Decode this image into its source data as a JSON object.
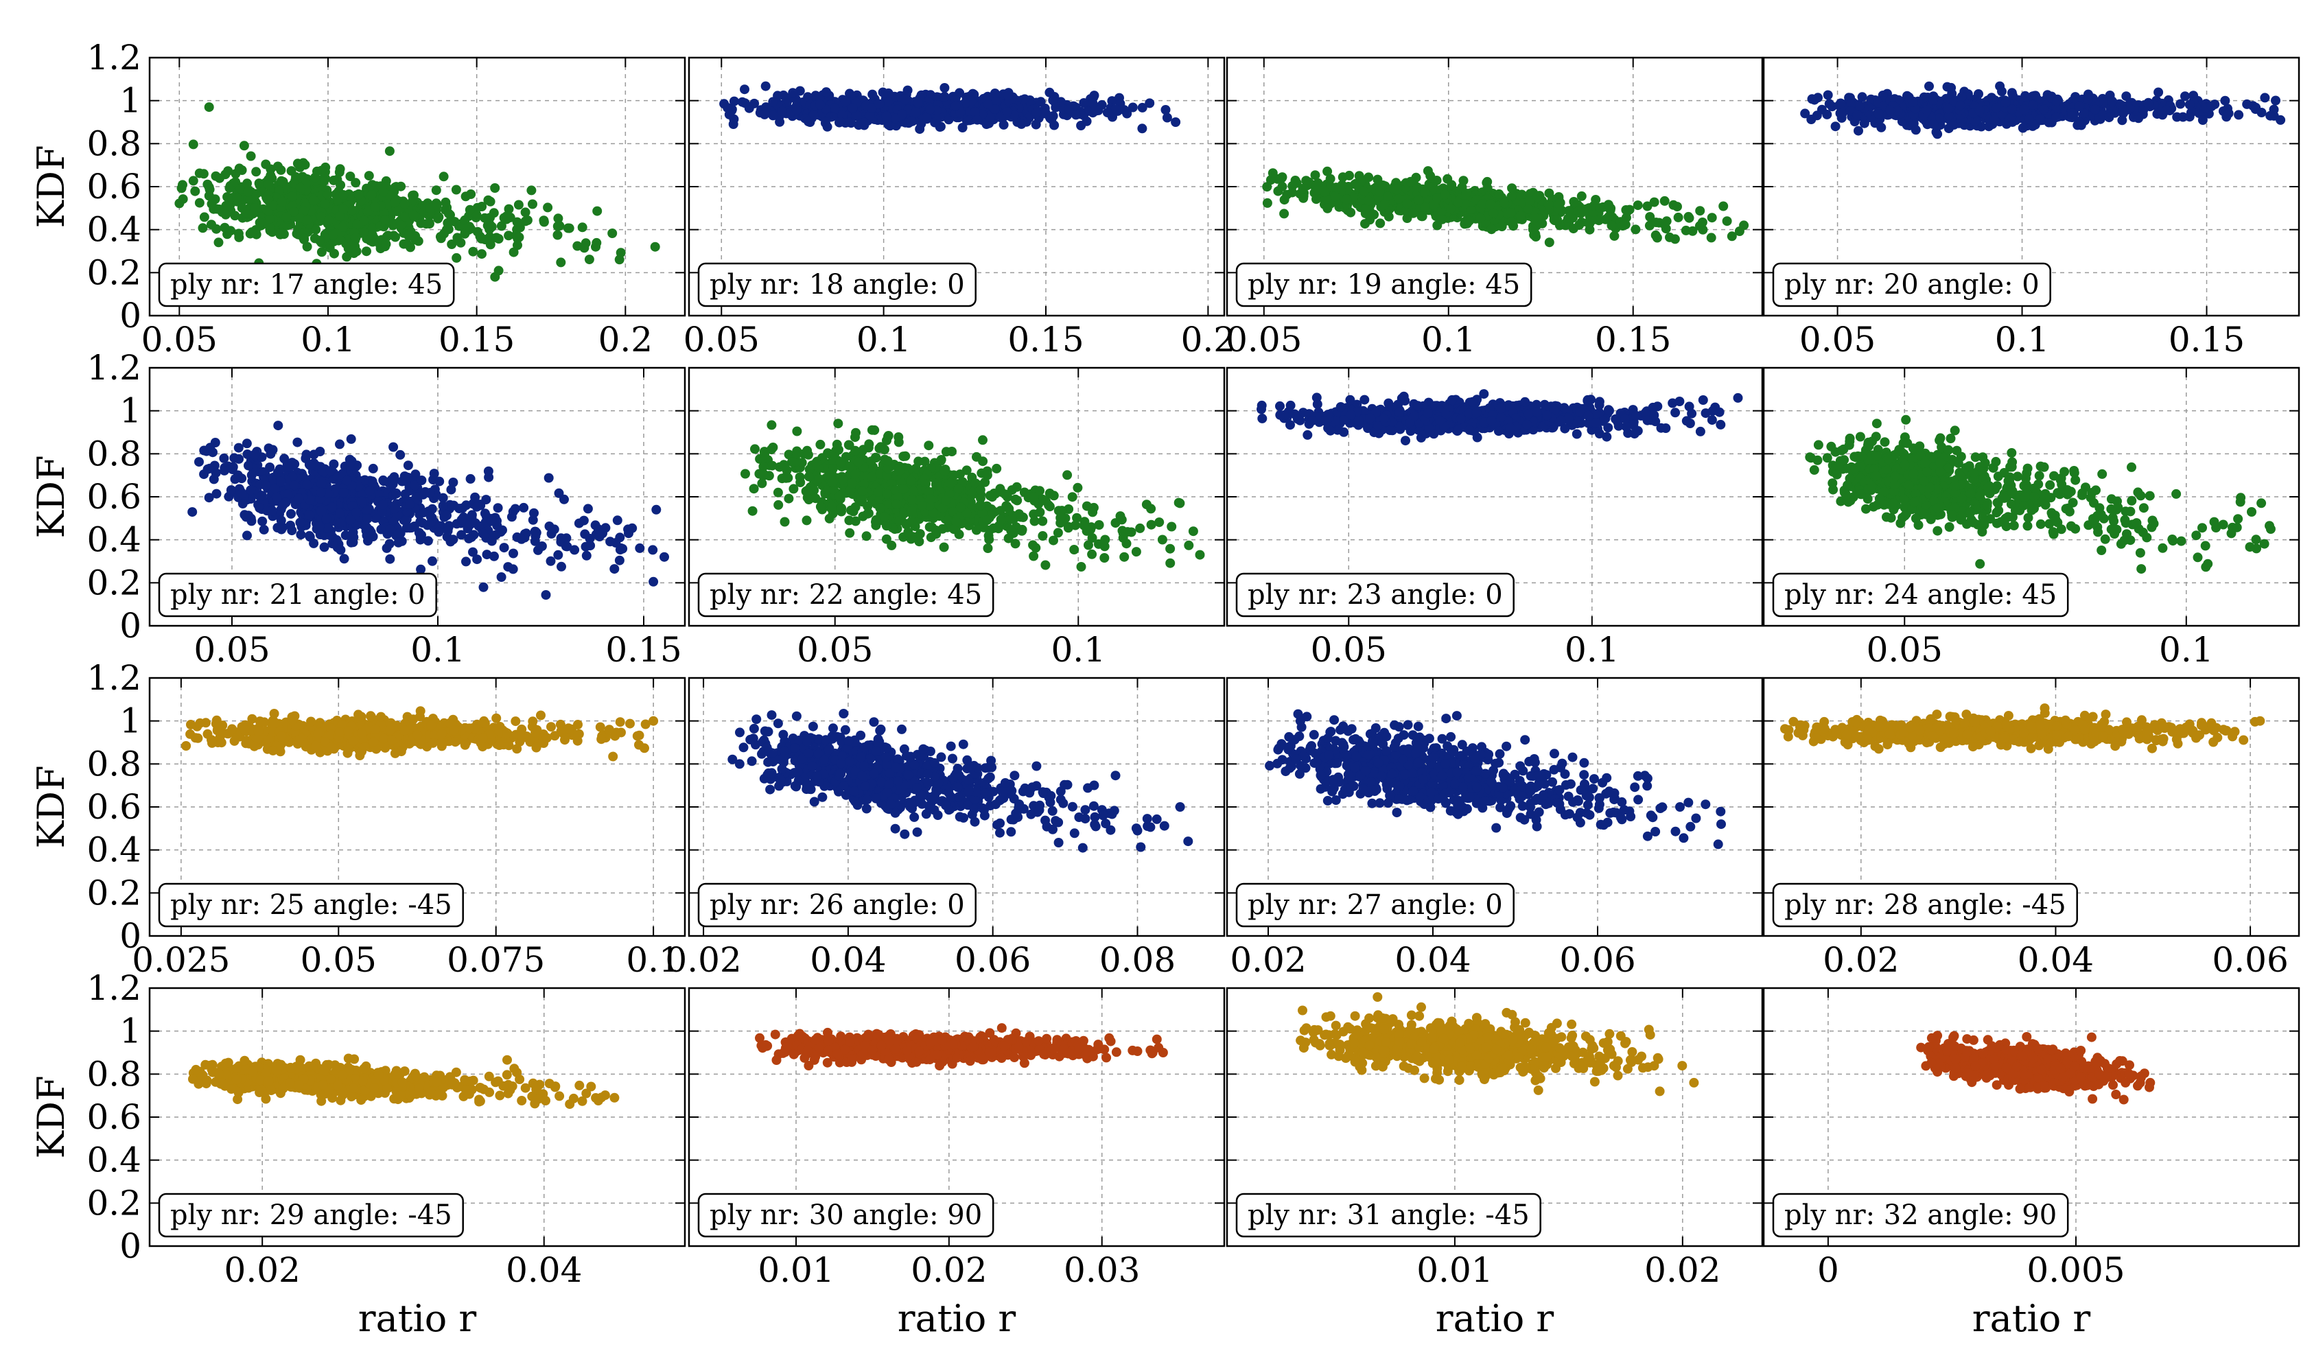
{
  "figure": {
    "ylabel": "KDF",
    "xlabel": "ratio r"
  },
  "colors": {
    "green": "#1b7a1e",
    "blue": "#0d2480",
    "gold": "#b8860b",
    "orange": "#b5400f"
  },
  "chart_data": [
    {
      "type": "scatter",
      "annotation": "ply nr: 17 angle: 45",
      "color": "green",
      "xlim": [
        0.04,
        0.22
      ],
      "xticks": [
        0.05,
        0.1,
        0.15,
        0.2
      ],
      "xticklabels": [
        "0.05",
        "0.1",
        "0.15",
        "0.2"
      ],
      "ylim": [
        0,
        1.2
      ],
      "cluster": {
        "x_range": [
          0.05,
          0.2
        ],
        "x_center": 0.09,
        "y_center": 0.5,
        "y_spread": 0.15,
        "trend": -1.2
      },
      "outliers": [
        [
          0.19,
          0.32
        ],
        [
          0.21,
          0.32
        ],
        [
          0.06,
          0.97
        ]
      ]
    },
    {
      "type": "scatter",
      "annotation": "ply nr: 18 angle: 0",
      "color": "blue",
      "xlim": [
        0.04,
        0.205
      ],
      "xticks": [
        0.05,
        0.1,
        0.15,
        0.2
      ],
      "xticklabels": [
        "0.05",
        "0.1",
        "0.15",
        "0.2"
      ],
      "ylim": [
        0,
        1.2
      ],
      "cluster": {
        "x_range": [
          0.05,
          0.19
        ],
        "x_center": 0.1,
        "y_center": 0.96,
        "y_spread": 0.06,
        "trend": 0
      },
      "outliers": [
        [
          0.19,
          0.9
        ],
        [
          0.175,
          0.94
        ]
      ]
    },
    {
      "type": "scatter",
      "annotation": "ply nr: 19 angle: 45",
      "color": "green",
      "xlim": [
        0.04,
        0.185
      ],
      "xticks": [
        0.05,
        0.1,
        0.15
      ],
      "xticklabels": [
        "0.05",
        "0.1",
        "0.15"
      ],
      "ylim": [
        0,
        1.2
      ],
      "cluster": {
        "x_range": [
          0.05,
          0.18
        ],
        "x_center": 0.09,
        "y_center": 0.54,
        "y_spread": 0.08,
        "trend": -1.5
      },
      "outliers": [
        [
          0.18,
          0.42
        ],
        [
          0.165,
          0.46
        ]
      ]
    },
    {
      "type": "scatter",
      "annotation": "ply nr: 20 angle: 0",
      "color": "blue",
      "xlim": [
        0.03,
        0.175
      ],
      "xticks": [
        0.05,
        0.1,
        0.15
      ],
      "xticklabels": [
        "0.05",
        "0.1",
        "0.15"
      ],
      "ylim": [
        0,
        1.2
      ],
      "cluster": {
        "x_range": [
          0.04,
          0.17
        ],
        "x_center": 0.08,
        "y_center": 0.96,
        "y_spread": 0.06,
        "trend": 0
      },
      "outliers": [
        [
          0.17,
          0.91
        ],
        [
          0.155,
          1.0
        ]
      ]
    },
    {
      "type": "scatter",
      "annotation": "ply nr: 21 angle: 0",
      "color": "blue",
      "xlim": [
        0.03,
        0.16
      ],
      "xticks": [
        0.05,
        0.1,
        0.15
      ],
      "xticklabels": [
        "0.05",
        "0.1",
        "0.15"
      ],
      "ylim": [
        0,
        1.2
      ],
      "cluster": {
        "x_range": [
          0.04,
          0.155
        ],
        "x_center": 0.07,
        "y_center": 0.6,
        "y_spread": 0.17,
        "trend": -3
      },
      "outliers": [
        [
          0.155,
          0.32
        ],
        [
          0.14,
          0.43
        ]
      ]
    },
    {
      "type": "scatter",
      "annotation": "ply nr: 22 angle: 45",
      "color": "green",
      "xlim": [
        0.02,
        0.13
      ],
      "xticks": [
        0.05,
        0.1
      ],
      "xticklabels": [
        "0.05",
        "0.1"
      ],
      "ylim": [
        0,
        1.2
      ],
      "cluster": {
        "x_range": [
          0.03,
          0.125
        ],
        "x_center": 0.058,
        "y_center": 0.65,
        "y_spread": 0.16,
        "trend": -4
      },
      "outliers": [
        [
          0.125,
          0.33
        ],
        [
          0.115,
          0.47
        ]
      ]
    },
    {
      "type": "scatter",
      "annotation": "ply nr: 23 angle: 0",
      "color": "blue",
      "xlim": [
        0.025,
        0.135
      ],
      "xticks": [
        0.05,
        0.1
      ],
      "xticklabels": [
        "0.05",
        "0.1"
      ],
      "ylim": [
        0,
        1.2
      ],
      "cluster": {
        "x_range": [
          0.032,
          0.13
        ],
        "x_center": 0.065,
        "y_center": 0.97,
        "y_spread": 0.06,
        "trend": 0
      },
      "outliers": [
        [
          0.13,
          1.06
        ],
        [
          0.12,
          1.02
        ]
      ]
    },
    {
      "type": "scatter",
      "annotation": "ply nr: 24 angle: 45",
      "color": "green",
      "xlim": [
        0.025,
        0.12
      ],
      "xticks": [
        0.05,
        0.1
      ],
      "xticklabels": [
        "0.05",
        "0.1"
      ],
      "ylim": [
        0,
        1.2
      ],
      "cluster": {
        "x_range": [
          0.033,
          0.115
        ],
        "x_center": 0.05,
        "y_center": 0.68,
        "y_spread": 0.15,
        "trend": -4
      },
      "outliers": [
        [
          0.115,
          0.45
        ],
        [
          0.108,
          0.43
        ]
      ]
    },
    {
      "type": "scatter",
      "annotation": "ply nr: 25 angle: -45",
      "color": "gold",
      "xlim": [
        0.02,
        0.105
      ],
      "xticks": [
        0.025,
        0.05,
        0.075,
        0.1
      ],
      "xticklabels": [
        "0.025",
        "0.05",
        "0.075",
        "0.1"
      ],
      "ylim": [
        0,
        1.2
      ],
      "cluster": {
        "x_range": [
          0.025,
          0.1
        ],
        "x_center": 0.05,
        "y_center": 0.94,
        "y_spread": 0.06,
        "trend": 0
      },
      "outliers": [
        [
          0.1,
          1.0
        ],
        [
          0.093,
          0.96
        ]
      ]
    },
    {
      "type": "scatter",
      "annotation": "ply nr: 26 angle: 0",
      "color": "blue",
      "xlim": [
        0.018,
        0.092
      ],
      "xticks": [
        0.02,
        0.04,
        0.06,
        0.08
      ],
      "xticklabels": [
        "0.02",
        "0.04",
        "0.06",
        "0.08"
      ],
      "ylim": [
        0,
        1.2
      ],
      "cluster": {
        "x_range": [
          0.024,
          0.088
        ],
        "x_center": 0.04,
        "y_center": 0.78,
        "y_spread": 0.14,
        "trend": -6
      },
      "outliers": [
        [
          0.087,
          0.44
        ],
        [
          0.08,
          0.49
        ]
      ]
    },
    {
      "type": "scatter",
      "annotation": "ply nr: 27 angle: 0",
      "color": "blue",
      "xlim": [
        0.015,
        0.08
      ],
      "xticks": [
        0.02,
        0.04,
        0.06
      ],
      "xticklabels": [
        "0.02",
        "0.04",
        "0.06"
      ],
      "ylim": [
        0,
        1.2
      ],
      "cluster": {
        "x_range": [
          0.02,
          0.075
        ],
        "x_center": 0.035,
        "y_center": 0.78,
        "y_spread": 0.14,
        "trend": -6
      },
      "outliers": [
        [
          0.075,
          0.52
        ],
        [
          0.07,
          0.6
        ]
      ]
    },
    {
      "type": "scatter",
      "annotation": "ply nr: 28 angle: -45",
      "color": "gold",
      "xlim": [
        0.01,
        0.065
      ],
      "xticks": [
        0.02,
        0.04,
        0.06
      ],
      "xticklabels": [
        "0.02",
        "0.04",
        "0.06"
      ],
      "ylim": [
        0,
        1.2
      ],
      "cluster": {
        "x_range": [
          0.012,
          0.061
        ],
        "x_center": 0.03,
        "y_center": 0.95,
        "y_spread": 0.05,
        "trend": 0
      },
      "outliers": [
        [
          0.061,
          1.0
        ],
        [
          0.056,
          0.99
        ]
      ]
    },
    {
      "type": "scatter",
      "annotation": "ply nr: 29 angle: -45",
      "color": "gold",
      "xlim": [
        0.012,
        0.05
      ],
      "xticks": [
        0.02,
        0.04
      ],
      "xticklabels": [
        "0.02",
        "0.04"
      ],
      "ylim": [
        0,
        1.2
      ],
      "cluster": {
        "x_range": [
          0.015,
          0.045
        ],
        "x_center": 0.022,
        "y_center": 0.78,
        "y_spread": 0.06,
        "trend": -3
      },
      "outliers": [
        [
          0.045,
          0.69
        ],
        [
          0.043,
          0.71
        ]
      ]
    },
    {
      "type": "scatter",
      "annotation": "ply nr: 30 angle: 90",
      "color": "orange",
      "xlim": [
        0.003,
        0.038
      ],
      "xticks": [
        0.01,
        0.02,
        0.03
      ],
      "xticklabels": [
        "0.01",
        "0.02",
        "0.03"
      ],
      "ylim": [
        0,
        1.2
      ],
      "cluster": {
        "x_range": [
          0.007,
          0.034
        ],
        "x_center": 0.016,
        "y_center": 0.92,
        "y_spread": 0.05,
        "trend": 0
      },
      "outliers": [
        [
          0.034,
          0.9
        ],
        [
          0.032,
          0.91
        ]
      ]
    },
    {
      "type": "scatter",
      "annotation": "ply nr: 31 angle: -45",
      "color": "gold",
      "xlim": [
        0.0,
        0.0235
      ],
      "xticks": [
        0.01,
        0.02
      ],
      "xticklabels": [
        "0.01",
        "0.02"
      ],
      "ylim": [
        0,
        1.2
      ],
      "cluster": {
        "x_range": [
          0.003,
          0.02
        ],
        "x_center": 0.009,
        "y_center": 0.93,
        "y_spread": 0.1,
        "trend": -6
      },
      "outliers": [
        [
          0.0205,
          0.76
        ],
        [
          0.019,
          0.72
        ]
      ]
    },
    {
      "type": "scatter",
      "annotation": "ply nr: 32 angle: 90",
      "color": "orange",
      "xlim": [
        -0.0013,
        0.0095
      ],
      "xticks": [
        0.0,
        0.005
      ],
      "xticklabels": [
        "0",
        "0.005"
      ],
      "ylim": [
        0,
        1.2
      ],
      "cluster": {
        "x_range": [
          0.0018,
          0.0065
        ],
        "x_center": 0.0035,
        "y_center": 0.85,
        "y_spread": 0.07,
        "trend": -25
      },
      "outliers": [
        [
          0.0065,
          0.76
        ],
        [
          0.006,
          0.76
        ]
      ]
    }
  ],
  "yticks": [
    0,
    0.2,
    0.4,
    0.6,
    0.8,
    1,
    1.2
  ],
  "yticklabels": [
    "0",
    "0.2",
    "0.4",
    "0.6",
    "0.8",
    "1",
    "1.2"
  ]
}
